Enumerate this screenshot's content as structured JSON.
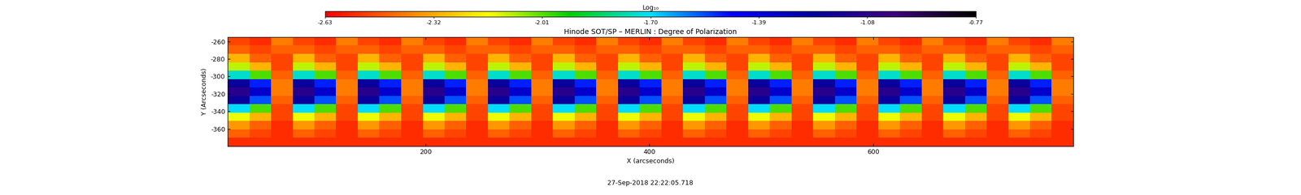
{
  "chart_data": {
    "type": "heatmap",
    "title": "Hinode SOT/SP – MERLIN : Degree of Polarization",
    "x_label": "X (arcseconds)",
    "y_label": "Y (Arcseconds)",
    "annotations": [
      "27-Sep-2018 22:22:05.718"
    ],
    "xlim": [
      23,
      779
    ],
    "ylim": [
      -380,
      -255
    ],
    "xticks": [
      200,
      400,
      600
    ],
    "yticks": [
      -360,
      -340,
      -320,
      -300,
      -280,
      -260
    ],
    "grid": false,
    "x": [
      32.7,
      52.1,
      71.5,
      90.9,
      110.2,
      129.6,
      149.0,
      168.4,
      187.8,
      207.2,
      226.5,
      245.9,
      265.3,
      284.7,
      304.1,
      323.5,
      342.9,
      362.2,
      381.6,
      401.0,
      420.4,
      439.8,
      459.2,
      478.6,
      497.9,
      517.3,
      536.7,
      556.1,
      575.5,
      594.9,
      614.3,
      633.6,
      653.0,
      672.4,
      691.8,
      711.2,
      730.6,
      749.9,
      769.3
    ],
    "y": [
      -259.8,
      -269.4,
      -279.0,
      -288.7,
      -298.3,
      -307.9,
      -317.5,
      -327.1,
      -336.7,
      -346.3,
      -356.0,
      -365.6,
      -375.2
    ],
    "cells": [
      [
        -2.5,
        -2.55,
        -2.4,
        -2.5,
        -2.55,
        -2.4,
        -2.5,
        -2.55,
        -2.4,
        -2.5,
        -2.55,
        -2.4,
        -2.5,
        -2.55,
        -2.4,
        -2.5,
        -2.55,
        -2.4,
        -2.5,
        -2.55,
        -2.4,
        -2.5,
        -2.55,
        -2.4,
        -2.5,
        -2.55,
        -2.4,
        -2.5,
        -2.55,
        -2.4,
        -2.5,
        -2.55,
        -2.4,
        -2.5,
        -2.55,
        -2.4,
        -2.5,
        -2.55,
        -2.4
      ],
      [
        -2.45,
        -2.5,
        -2.45,
        -2.45,
        -2.5,
        -2.45,
        -2.45,
        -2.5,
        -2.45,
        -2.45,
        -2.5,
        -2.45,
        -2.45,
        -2.5,
        -2.45,
        -2.45,
        -2.5,
        -2.45,
        -2.45,
        -2.5,
        -2.45,
        -2.45,
        -2.5,
        -2.45,
        -2.45,
        -2.5,
        -2.45,
        -2.45,
        -2.5,
        -2.45,
        -2.45,
        -2.5,
        -2.45,
        -2.45,
        -2.5,
        -2.45,
        -2.45,
        -2.5,
        -2.45
      ],
      [
        -2.3,
        -2.45,
        -2.5,
        -2.3,
        -2.45,
        -2.5,
        -2.3,
        -2.45,
        -2.5,
        -2.3,
        -2.45,
        -2.5,
        -2.3,
        -2.45,
        -2.5,
        -2.3,
        -2.45,
        -2.5,
        -2.3,
        -2.45,
        -2.5,
        -2.3,
        -2.45,
        -2.5,
        -2.3,
        -2.45,
        -2.5,
        -2.3,
        -2.45,
        -2.5,
        -2.3,
        -2.45,
        -2.5,
        -2.3,
        -2.45,
        -2.5,
        -2.3,
        -2.45,
        -2.5
      ],
      [
        -2.1,
        -2.3,
        -2.5,
        -2.1,
        -2.3,
        -2.5,
        -2.1,
        -2.3,
        -2.5,
        -2.1,
        -2.3,
        -2.5,
        -2.1,
        -2.3,
        -2.5,
        -2.1,
        -2.3,
        -2.5,
        -2.1,
        -2.3,
        -2.5,
        -2.1,
        -2.3,
        -2.5,
        -2.1,
        -2.3,
        -2.5,
        -2.1,
        -2.3,
        -2.5,
        -2.1,
        -2.3,
        -2.5,
        -2.1,
        -2.3,
        -2.5,
        -2.1,
        -2.3,
        -2.5
      ],
      [
        -1.75,
        -2.0,
        -2.45,
        -1.75,
        -2.0,
        -2.45,
        -1.75,
        -2.0,
        -2.45,
        -1.75,
        -2.0,
        -2.45,
        -1.75,
        -2.0,
        -2.45,
        -1.75,
        -2.0,
        -2.45,
        -1.75,
        -2.0,
        -2.45,
        -1.75,
        -2.0,
        -2.45,
        -1.75,
        -2.0,
        -2.45,
        -1.75,
        -2.0,
        -2.45,
        -1.75,
        -2.0,
        -2.45,
        -1.75,
        -2.0,
        -2.45,
        -1.75,
        -2.0,
        -2.45
      ],
      [
        -1.2,
        -1.5,
        -2.4,
        -1.2,
        -1.5,
        -2.4,
        -1.2,
        -1.5,
        -2.4,
        -1.2,
        -1.5,
        -2.4,
        -1.2,
        -1.5,
        -2.4,
        -1.2,
        -1.5,
        -2.4,
        -1.2,
        -1.5,
        -2.4,
        -1.2,
        -1.5,
        -2.4,
        -1.2,
        -1.5,
        -2.4,
        -1.2,
        -1.5,
        -2.4,
        -1.2,
        -1.5,
        -2.4,
        -1.2,
        -1.5,
        -2.4,
        -1.2,
        -1.5,
        -2.4
      ],
      [
        -1.1,
        -1.35,
        -2.4,
        -1.1,
        -1.35,
        -2.4,
        -1.1,
        -1.35,
        -2.4,
        -1.1,
        -1.35,
        -2.4,
        -1.1,
        -1.35,
        -2.4,
        -1.1,
        -1.35,
        -2.4,
        -1.1,
        -1.35,
        -2.4,
        -1.1,
        -1.35,
        -2.4,
        -1.1,
        -1.35,
        -2.4,
        -1.1,
        -1.35,
        -2.4,
        -1.1,
        -1.35,
        -2.4,
        -1.1,
        -1.35,
        -2.4,
        -1.1,
        -1.35,
        -2.4
      ],
      [
        -1.2,
        -1.55,
        -2.45,
        -1.2,
        -1.55,
        -2.45,
        -1.2,
        -1.55,
        -2.45,
        -1.2,
        -1.55,
        -2.45,
        -1.2,
        -1.55,
        -2.45,
        -1.2,
        -1.55,
        -2.45,
        -1.2,
        -1.55,
        -2.45,
        -1.2,
        -1.55,
        -2.45,
        -1.2,
        -1.55,
        -2.45,
        -1.2,
        -1.55,
        -2.45,
        -1.2,
        -1.55,
        -2.45,
        -1.2,
        -1.55,
        -2.45,
        -1.2,
        -1.55,
        -2.45
      ],
      [
        -1.7,
        -2.0,
        -2.5,
        -1.7,
        -2.0,
        -2.5,
        -1.7,
        -2.0,
        -2.5,
        -1.7,
        -2.0,
        -2.5,
        -1.7,
        -2.0,
        -2.5,
        -1.7,
        -2.0,
        -2.5,
        -1.7,
        -2.0,
        -2.5,
        -1.7,
        -2.0,
        -2.5,
        -1.7,
        -2.0,
        -2.5,
        -1.7,
        -2.0,
        -2.5,
        -1.7,
        -2.0,
        -2.5,
        -1.7,
        -2.0,
        -2.5,
        -1.7,
        -2.0,
        -2.5
      ],
      [
        -2.15,
        -2.3,
        -2.5,
        -2.15,
        -2.3,
        -2.5,
        -2.15,
        -2.3,
        -2.5,
        -2.15,
        -2.3,
        -2.5,
        -2.15,
        -2.3,
        -2.5,
        -2.15,
        -2.3,
        -2.5,
        -2.15,
        -2.3,
        -2.5,
        -2.15,
        -2.3,
        -2.5,
        -2.15,
        -2.3,
        -2.5,
        -2.15,
        -2.3,
        -2.5,
        -2.15,
        -2.3,
        -2.5,
        -2.15,
        -2.3,
        -2.5,
        -2.15,
        -2.3,
        -2.5
      ],
      [
        -2.35,
        -2.45,
        -2.55,
        -2.35,
        -2.45,
        -2.55,
        -2.35,
        -2.45,
        -2.55,
        -2.35,
        -2.45,
        -2.55,
        -2.35,
        -2.45,
        -2.55,
        -2.35,
        -2.45,
        -2.55,
        -2.35,
        -2.45,
        -2.55,
        -2.35,
        -2.45,
        -2.55,
        -2.35,
        -2.45,
        -2.55,
        -2.35,
        -2.45,
        -2.55,
        -2.35,
        -2.45,
        -2.55,
        -2.35,
        -2.45,
        -2.55,
        -2.35,
        -2.45,
        -2.55
      ],
      [
        -2.45,
        -2.5,
        -2.55,
        -2.45,
        -2.5,
        -2.55,
        -2.45,
        -2.5,
        -2.55,
        -2.45,
        -2.5,
        -2.55,
        -2.45,
        -2.5,
        -2.55,
        -2.45,
        -2.5,
        -2.55,
        -2.45,
        -2.5,
        -2.55,
        -2.45,
        -2.5,
        -2.55,
        -2.45,
        -2.5,
        -2.55,
        -2.45,
        -2.5,
        -2.55,
        -2.45,
        -2.5,
        -2.55,
        -2.45,
        -2.5,
        -2.55,
        -2.45,
        -2.5,
        -2.55
      ],
      [
        -2.55,
        -2.55,
        -2.55,
        -2.55,
        -2.55,
        -2.55,
        -2.55,
        -2.55,
        -2.55,
        -2.55,
        -2.55,
        -2.55,
        -2.55,
        -2.55,
        -2.55,
        -2.55,
        -2.55,
        -2.55,
        -2.55,
        -2.55,
        -2.55,
        -2.55,
        -2.55,
        -2.55,
        -2.55,
        -2.55,
        -2.55,
        -2.55,
        -2.55,
        -2.55,
        -2.55,
        -2.55,
        -2.55,
        -2.55,
        -2.55,
        -2.55,
        -2.55,
        -2.55,
        -2.55
      ]
    ],
    "colorbar": {
      "label": "Log₁₀",
      "range": [
        -2.63,
        -0.77
      ],
      "ticks": [
        -2.63,
        -2.32,
        -2.01,
        {
          "value": -1.7,
          "label": "-1.70"
        },
        -1.39,
        -1.08,
        -0.77
      ]
    }
  }
}
